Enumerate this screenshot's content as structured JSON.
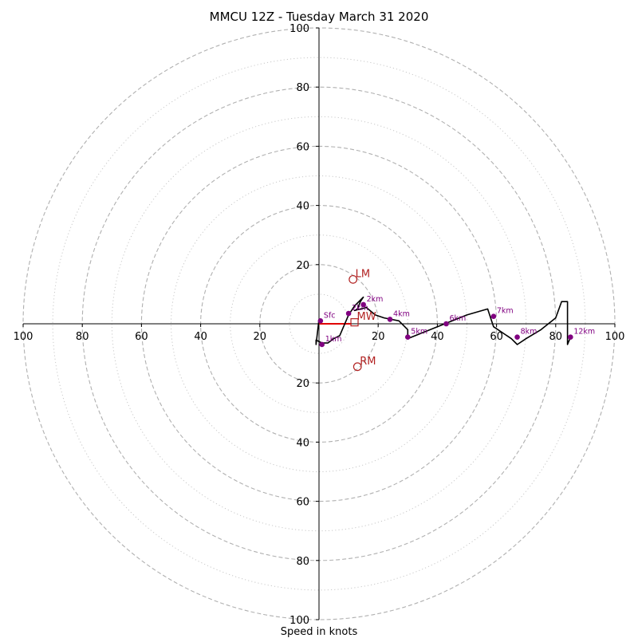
{
  "chart_data": {
    "type": "hodograph",
    "title": "MMCU 12Z - Tuesday March 31 2020",
    "xlabel": "Speed in knots",
    "range": [
      -100,
      100
    ],
    "ring_labels_dashed": [
      20,
      40,
      60,
      80,
      100
    ],
    "dotted_rings": [
      10,
      30,
      50,
      70,
      90
    ],
    "x_tick_labels": [
      "100",
      "80",
      "60",
      "40",
      "20",
      "20",
      "40",
      "60",
      "80",
      "100"
    ],
    "y_tick_labels": [
      "100",
      "80",
      "60",
      "40",
      "20",
      "20",
      "40",
      "60",
      "80",
      "100"
    ],
    "trace": [
      [
        0,
        1.5
      ],
      [
        -1,
        -7
      ],
      [
        -1,
        -5.5
      ],
      [
        1,
        -6.5
      ],
      [
        3,
        -6.5
      ],
      [
        5,
        -5
      ],
      [
        7,
        -4
      ],
      [
        10,
        3
      ],
      [
        12,
        6
      ],
      [
        15,
        9
      ],
      [
        14,
        7.5
      ],
      [
        13,
        5
      ],
      [
        12,
        4.5
      ],
      [
        16,
        5.5
      ],
      [
        19,
        3
      ],
      [
        22,
        2
      ],
      [
        27,
        1
      ],
      [
        30,
        -2
      ],
      [
        30,
        -5
      ],
      [
        40,
        -1
      ],
      [
        50,
        3
      ],
      [
        57,
        5
      ],
      [
        58,
        2
      ],
      [
        59,
        -1
      ],
      [
        65,
        -5
      ],
      [
        67,
        -7
      ],
      [
        70,
        -5
      ],
      [
        75,
        -2
      ],
      [
        80,
        2
      ],
      [
        82,
        7.5
      ],
      [
        84,
        7.5
      ],
      [
        84,
        -7
      ],
      [
        85,
        -4.5
      ]
    ],
    "height_points": [
      {
        "label": "Sfc",
        "x": 0.5,
        "y": 1
      },
      {
        "label": "1km",
        "x": 1,
        "y": -7
      },
      {
        "label": "2km",
        "x": 10,
        "y": 3.5
      },
      {
        "label": "2km",
        "x": 15,
        "y": 6.5
      },
      {
        "label": "4km",
        "x": 24,
        "y": 1.5
      },
      {
        "label": "5km",
        "x": 30,
        "y": -4.5
      },
      {
        "label": "6km",
        "x": 43,
        "y": 0
      },
      {
        "label": "7km",
        "x": 59,
        "y": 2.5
      },
      {
        "label": "8km",
        "x": 67,
        "y": -4.5
      },
      {
        "label": "12km",
        "x": 85,
        "y": -4.5
      }
    ],
    "storm_motions": [
      {
        "label": "LM",
        "x": 11.5,
        "y": 15
      },
      {
        "label": "MW",
        "x": 12,
        "y": 0.5
      },
      {
        "label": "RM",
        "x": 13,
        "y": -14.5
      }
    ],
    "shear_vector": {
      "x": [
        0,
        11
      ],
      "y": [
        0,
        0
      ]
    },
    "colors": {
      "trace": "#000000",
      "points": "#800080",
      "motion": "#b22222",
      "shear": "#e00000",
      "rings": "#b0b0b0"
    }
  }
}
